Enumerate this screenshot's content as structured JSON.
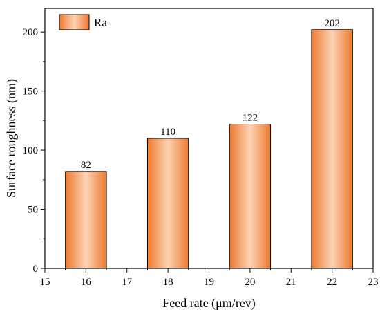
{
  "chart_data": {
    "type": "bar",
    "x": [
      16,
      18,
      20,
      22
    ],
    "values": [
      82,
      110,
      122,
      202
    ],
    "data_labels": [
      "82",
      "110",
      "122",
      "202"
    ],
    "series": [
      {
        "name": "Ra",
        "values": [
          82,
          110,
          122,
          202
        ]
      }
    ],
    "xlabel": "Feed rate (μm/rev)",
    "ylabel": "Surface roughness (nm)",
    "xlim": [
      15,
      23
    ],
    "ylim": [
      0,
      220
    ],
    "xticks": [
      15,
      16,
      17,
      18,
      19,
      20,
      21,
      22,
      23
    ],
    "yticks": [
      0,
      50,
      100,
      150,
      200
    ],
    "bar_width": 1.0,
    "grid": false,
    "legend": {
      "entries": [
        "Ra"
      ],
      "placement": "top-left"
    },
    "colors": {
      "bar_edge": "#ee7a2e",
      "bar_center": "#fcd3b5",
      "outline": "#000000"
    }
  }
}
